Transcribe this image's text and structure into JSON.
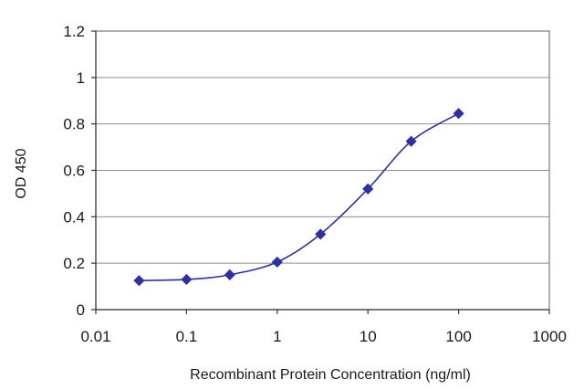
{
  "chart_data": {
    "type": "line",
    "xlabel": "Recombinant Protein Concentration (ng/ml)",
    "ylabel": "OD 450",
    "x_scale": "log",
    "xlim": [
      0.01,
      1000
    ],
    "ylim": [
      0,
      1.2
    ],
    "x_ticks": [
      0.01,
      0.1,
      1,
      10,
      100,
      1000
    ],
    "x_tick_labels": [
      "0.01",
      "0.1",
      "1",
      "10",
      "100",
      "1000"
    ],
    "y_ticks": [
      0,
      0.2,
      0.4,
      0.6,
      0.8,
      1,
      1.2
    ],
    "y_tick_labels": [
      "0",
      "0.2",
      "0.4",
      "0.6",
      "0.8",
      "1",
      "1.2"
    ],
    "grid": "horizontal",
    "series": [
      {
        "color": "#2b2fa8",
        "marker": "diamond",
        "x": [
          0.03,
          0.1,
          0.3,
          1,
          3,
          10,
          30,
          100
        ],
        "y": [
          0.125,
          0.13,
          0.15,
          0.205,
          0.325,
          0.52,
          0.725,
          0.845
        ]
      }
    ]
  }
}
